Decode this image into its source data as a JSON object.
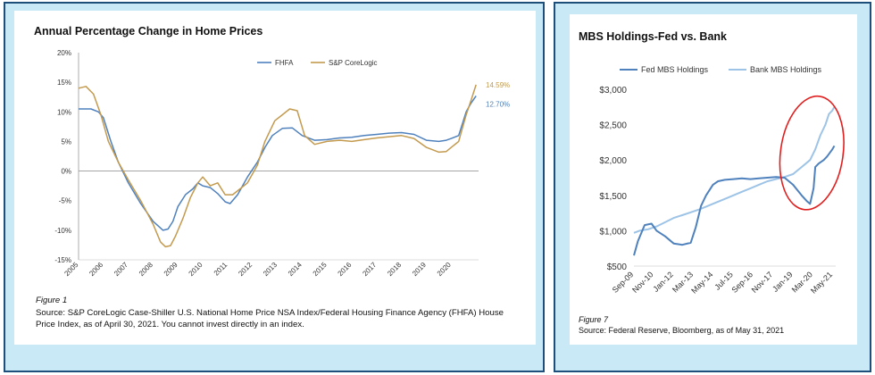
{
  "chart_data": [
    {
      "type": "line",
      "title": "Annual Percentage Change in Home Prices",
      "legend": [
        "FHFA",
        "S&P CoreLogic"
      ],
      "legend_position": "top",
      "x_ticks": [
        "2005",
        "2006",
        "2007",
        "2008",
        "2009",
        "2010",
        "2011",
        "2012",
        "2013",
        "2014",
        "2015",
        "2016",
        "2017",
        "2018",
        "2019",
        "2020"
      ],
      "xlim": [
        2005,
        2021.1
      ],
      "y_ticks": [
        "20%",
        "15%",
        "10%",
        "5%",
        "0%",
        "-5%",
        "-10%",
        "-15%"
      ],
      "ylim": [
        -15,
        20
      ],
      "grid": false,
      "series": [
        {
          "name": "FHFA",
          "color": "#4f81bd",
          "end_label": "12.70%",
          "x": [
            2005.0,
            2005.5,
            2005.8,
            2006.0,
            2006.3,
            2006.6,
            2007.0,
            2007.5,
            2008.0,
            2008.4,
            2008.6,
            2008.8,
            2009.0,
            2009.3,
            2009.6,
            2009.8,
            2010.0,
            2010.3,
            2010.6,
            2010.9,
            2011.1,
            2011.4,
            2011.8,
            2012.2,
            2012.5,
            2012.8,
            2013.2,
            2013.6,
            2014.0,
            2014.5,
            2015.0,
            2015.5,
            2016.0,
            2016.5,
            2017.0,
            2017.5,
            2018.0,
            2018.5,
            2019.0,
            2019.5,
            2019.8,
            2020.0,
            2020.3,
            2020.6,
            2020.8,
            2021.0
          ],
          "values": [
            10.5,
            10.5,
            10.0,
            9.0,
            5.0,
            1.5,
            -2.0,
            -5.5,
            -8.5,
            -10.0,
            -9.8,
            -8.5,
            -6.0,
            -4.0,
            -3.0,
            -2.0,
            -2.5,
            -2.8,
            -3.8,
            -5.2,
            -5.5,
            -4.0,
            -1.0,
            1.5,
            4.0,
            6.0,
            7.2,
            7.3,
            6.0,
            5.2,
            5.3,
            5.6,
            5.7,
            6.0,
            6.2,
            6.4,
            6.5,
            6.2,
            5.2,
            5.0,
            5.2,
            5.5,
            6.0,
            10.0,
            11.5,
            12.7
          ]
        },
        {
          "name": "S&P CoreLogic",
          "color": "#c39a4e",
          "end_label": "14.59%",
          "x": [
            2005.0,
            2005.3,
            2005.6,
            2005.9,
            2006.2,
            2006.6,
            2007.0,
            2007.5,
            2008.0,
            2008.3,
            2008.5,
            2008.7,
            2008.9,
            2009.2,
            2009.5,
            2009.8,
            2010.0,
            2010.3,
            2010.6,
            2010.9,
            2011.2,
            2011.5,
            2011.8,
            2012.2,
            2012.5,
            2012.9,
            2013.2,
            2013.5,
            2013.8,
            2014.1,
            2014.5,
            2015.0,
            2015.5,
            2016.0,
            2016.5,
            2017.0,
            2017.5,
            2018.0,
            2018.5,
            2019.0,
            2019.5,
            2019.8,
            2020.0,
            2020.3,
            2020.6,
            2020.8,
            2021.0
          ],
          "values": [
            14.0,
            14.3,
            13.0,
            9.5,
            5.0,
            1.5,
            -1.5,
            -5.0,
            -9.0,
            -12.0,
            -12.8,
            -12.6,
            -11.0,
            -8.0,
            -4.5,
            -2.0,
            -1.0,
            -2.5,
            -2.0,
            -4.0,
            -4.0,
            -3.0,
            -2.0,
            1.0,
            5.0,
            8.5,
            9.5,
            10.5,
            10.2,
            6.0,
            4.5,
            5.0,
            5.2,
            5.0,
            5.3,
            5.6,
            5.8,
            6.0,
            5.5,
            4.0,
            3.2,
            3.3,
            4.0,
            5.0,
            9.5,
            12.0,
            14.59
          ]
        }
      ]
    },
    {
      "type": "line",
      "title": "MBS Holdings-Fed vs. Bank",
      "legend": [
        "Fed MBS Holdings",
        "Bank MBS Holdings"
      ],
      "legend_position": "top",
      "x_ticks": [
        "Sep-09",
        "Nov-10",
        "Jan-12",
        "Mar-13",
        "May-14",
        "Jul-15",
        "Sep-16",
        "Nov-17",
        "Jan-19",
        "Mar-20",
        "May-21"
      ],
      "y_ticks": [
        "$3,000",
        "$2,500",
        "$2,000",
        "$1,500",
        "$1,000",
        "$500"
      ],
      "ylim": [
        500,
        3000
      ],
      "grid": false,
      "annotation": "red ellipse highlighting 2019-2021 surge",
      "series": [
        {
          "name": "Fed MBS Holdings",
          "color": "#4f81bd",
          "x": [
            2009.67,
            2009.9,
            2010.3,
            2010.7,
            2011.0,
            2011.5,
            2012.0,
            2012.5,
            2013.0,
            2013.3,
            2013.6,
            2013.9,
            2014.3,
            2014.6,
            2015.0,
            2015.5,
            2016.0,
            2016.5,
            2017.0,
            2017.5,
            2018.0,
            2018.5,
            2019.0,
            2019.5,
            2019.8,
            2020.0,
            2020.2,
            2020.3,
            2020.5,
            2020.8,
            2021.0,
            2021.3,
            2021.42
          ],
          "values": [
            650,
            850,
            1080,
            1100,
            1000,
            920,
            820,
            800,
            830,
            1050,
            1350,
            1500,
            1650,
            1700,
            1720,
            1730,
            1740,
            1730,
            1740,
            1750,
            1760,
            1750,
            1650,
            1500,
            1420,
            1380,
            1600,
            1900,
            1950,
            2000,
            2050,
            2150,
            2200
          ]
        },
        {
          "name": "Bank MBS Holdings",
          "color": "#9dc3e6",
          "x": [
            2009.67,
            2010.0,
            2010.5,
            2011.0,
            2011.5,
            2012.0,
            2012.5,
            2013.0,
            2013.5,
            2014.0,
            2014.5,
            2015.0,
            2015.5,
            2016.0,
            2016.5,
            2017.0,
            2017.5,
            2018.0,
            2018.5,
            2019.0,
            2019.5,
            2020.0,
            2020.3,
            2020.6,
            2020.9,
            2021.1,
            2021.3,
            2021.42
          ],
          "values": [
            970,
            1000,
            1020,
            1060,
            1120,
            1180,
            1220,
            1260,
            1300,
            1350,
            1400,
            1450,
            1500,
            1550,
            1600,
            1650,
            1700,
            1730,
            1760,
            1800,
            1900,
            2000,
            2150,
            2350,
            2500,
            2650,
            2700,
            2750
          ]
        }
      ]
    }
  ],
  "left": {
    "title": "Annual Percentage Change in Home Prices",
    "figure_label": "Figure 1",
    "source_text": "Source: S&P CoreLogic Case-Shiller U.S. National Home Price NSA Index/Federal Housing Finance Agency (FHFA) House Price Index, as of April 30, 2021.  You cannot invest directly in an index."
  },
  "right": {
    "title": "MBS Holdings-Fed vs. Bank",
    "figure_label": "Figure 7",
    "source_text": "Source: Federal Reserve, Bloomberg, as of May 31, 2021"
  },
  "colors": {
    "panel_bg": "#c9e9f7",
    "panel_border": "#1d4f7a",
    "fhfa": "#4f81bd",
    "spcl": "#c39a4e",
    "fed": "#4f81bd",
    "bank": "#9dc3e6",
    "highlight": "#e02020"
  }
}
